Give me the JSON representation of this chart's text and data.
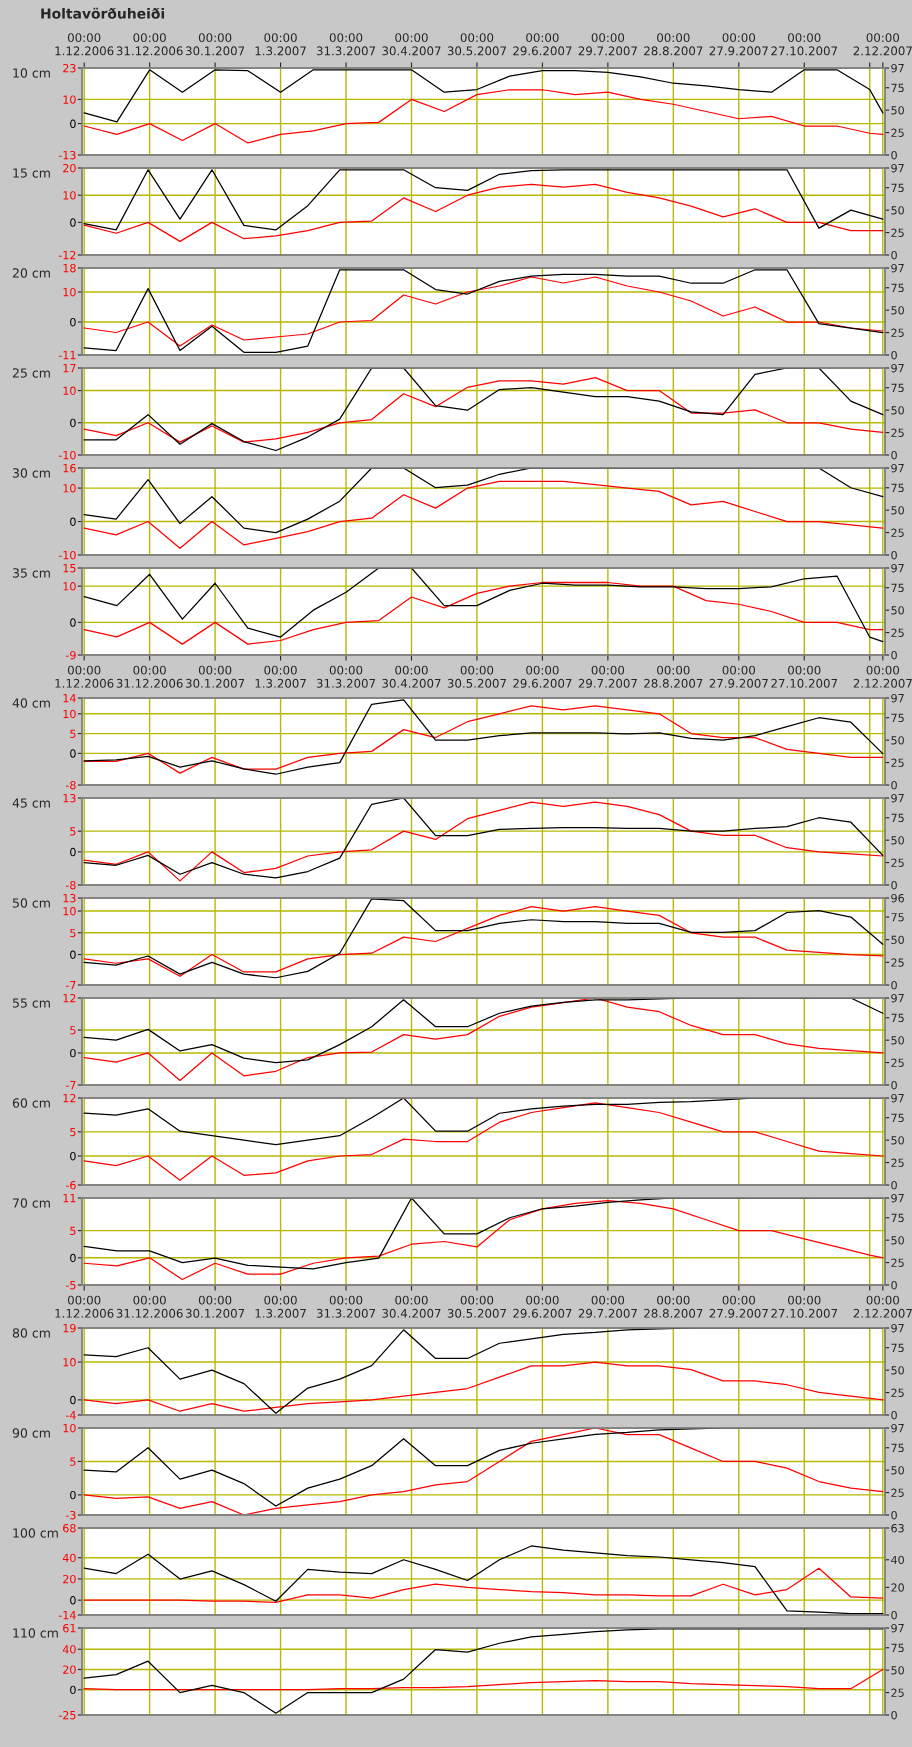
{
  "chart_data": [
    {
      "type": "line",
      "title": "Holtavörðuheiði",
      "ylabel": "10 cm",
      "x": [
        "2006-12-01",
        "2006-12-16",
        "2006-12-31",
        "2007-01-15",
        "2007-01-30",
        "2007-02-14",
        "2007-03-01",
        "2007-03-16",
        "2007-03-31",
        "2007-04-15",
        "2007-04-30",
        "2007-05-15",
        "2007-05-30",
        "2007-06-14",
        "2007-06-29",
        "2007-07-14",
        "2007-07-29",
        "2007-08-13",
        "2007-08-28",
        "2007-09-12",
        "2007-09-27",
        "2007-10-12",
        "2007-10-27",
        "2007-11-11",
        "2007-11-26",
        "2007-12-02"
      ],
      "series": [
        {
          "color": "#ff0000",
          "values": [
            -1,
            -4.5,
            0,
            -7,
            0,
            -8,
            -4.5,
            -3,
            0,
            0.5,
            10,
            5,
            12,
            14,
            14,
            12,
            13,
            10,
            8,
            5,
            2,
            3,
            -1,
            -1,
            -4,
            -4.5
          ]
        },
        {
          "color": "#000000",
          "axis": "y2",
          "values": [
            47,
            37,
            95,
            70,
            95,
            94,
            70,
            95,
            95,
            95,
            95,
            70,
            73,
            88,
            94,
            94,
            92,
            87,
            80,
            77,
            73,
            70,
            95,
            95,
            73,
            47
          ]
        }
      ],
      "xlim": [
        "2006-11-30",
        "2007-12-03"
      ],
      "xticks": [
        {
          "value": "2006-12-01",
          "label": "00:00\n1.12.2006"
        },
        {
          "value": "2006-12-31",
          "label": "00:00\n31.12.2006"
        },
        {
          "value": "2007-01-30",
          "label": "00:00\n30.1.2007"
        },
        {
          "value": "2007-03-01",
          "label": "00:00\n1.3.2007"
        },
        {
          "value": "2007-03-31",
          "label": "00:00\n31.3.2007"
        },
        {
          "value": "2007-04-30",
          "label": "00:00\n30.4.2007"
        },
        {
          "value": "2007-05-30",
          "label": "00:00\n30.5.2007"
        },
        {
          "value": "2007-06-29",
          "label": "00:00\n29.6.2007"
        },
        {
          "value": "2007-07-29",
          "label": "00:00\n29.7.2007"
        },
        {
          "value": "2007-08-28",
          "label": "00:00\n28.8.2007"
        },
        {
          "value": "2007-09-27",
          "label": "00:00\n27.9.2007"
        },
        {
          "value": "2007-10-27",
          "label": "00:00\n27.10.2007"
        },
        {
          "value": "2007-11-26",
          "label": null
        },
        {
          "value": "2007-12-02",
          "label": "00:00\n2.12.2007"
        }
      ],
      "ylim": [
        -13,
        23
      ],
      "yticks": [
        -13,
        0,
        10,
        23
      ],
      "y2lim": [
        0,
        97
      ],
      "y2ticks": [
        0,
        25,
        50,
        75,
        97
      ],
      "grid": true
    },
    {
      "type": "line",
      "ylabel": "15 cm",
      "categories": [
        null,
        null,
        null,
        null,
        null,
        null,
        null,
        null,
        null,
        null,
        null,
        null,
        null,
        null,
        null,
        null,
        null,
        null,
        null,
        null,
        null,
        null,
        null,
        null,
        null,
        null
      ],
      "series": [
        {
          "color": "#ff0000",
          "values": [
            -1,
            -4,
            0,
            -7,
            0,
            -6,
            -5,
            -3,
            0,
            0.5,
            9,
            4,
            10,
            13,
            14,
            13,
            14,
            11,
            9,
            6,
            2,
            5,
            0,
            0,
            -3,
            -3
          ]
        },
        {
          "color": "#000000",
          "axis": "y2",
          "values": [
            35,
            28,
            95,
            40,
            95,
            33,
            28,
            55,
            95,
            95,
            95,
            75,
            72,
            90,
            94,
            95,
            95,
            95,
            95,
            95,
            95,
            95,
            95,
            30,
            50,
            40
          ]
        }
      ],
      "tick_labels": [
        "y",
        "y2"
      ],
      "ylim": [
        -12,
        20
      ],
      "yticks": [
        -12,
        0,
        10,
        20
      ],
      "y2lim": [
        0,
        97
      ],
      "y2ticks": [
        0,
        25,
        50,
        75,
        97
      ],
      "grid": true
    },
    {
      "type": "line",
      "ylabel": "20 cm",
      "categories": [
        null,
        null,
        null,
        null,
        null,
        null,
        null,
        null,
        null,
        null,
        null,
        null,
        null,
        null,
        null,
        null,
        null,
        null,
        null,
        null,
        null,
        null,
        null,
        null,
        null,
        null
      ],
      "series": [
        {
          "color": "#ff0000",
          "values": [
            -2,
            -3.5,
            0,
            -8,
            -1,
            -6,
            -5,
            -4,
            0,
            0.5,
            9,
            6,
            10,
            12,
            15,
            13,
            15,
            12,
            10,
            7,
            2,
            5,
            0,
            0,
            -2,
            -3
          ]
        },
        {
          "color": "#000000",
          "axis": "y2",
          "values": [
            8,
            5,
            74,
            5,
            32,
            3,
            3,
            10,
            95,
            95,
            95,
            73,
            68,
            82,
            88,
            90,
            90,
            88,
            88,
            80,
            80,
            95,
            95,
            35,
            30,
            25
          ]
        }
      ],
      "tick_labels": [
        "y",
        "y2"
      ],
      "ylim": [
        -11,
        18
      ],
      "yticks": [
        -11,
        0,
        10,
        18
      ],
      "y2lim": [
        0,
        97
      ],
      "y2ticks": [
        0,
        25,
        50,
        75,
        97
      ],
      "grid": true
    },
    {
      "type": "line",
      "ylabel": "25 cm",
      "categories": [
        null,
        null,
        null,
        null,
        null,
        null,
        null,
        null,
        null,
        null,
        null,
        null,
        null,
        null,
        null,
        null,
        null,
        null,
        null,
        null,
        null,
        null,
        null,
        null,
        null,
        null
      ],
      "series": [
        {
          "color": "#ff0000",
          "values": [
            -2,
            -4,
            0,
            -6,
            -1,
            -6,
            -5,
            -3,
            0,
            1,
            9,
            5,
            11,
            13,
            13,
            12,
            14,
            10,
            10,
            3,
            3,
            4,
            0,
            0,
            -2,
            -3
          ]
        },
        {
          "color": "#000000",
          "axis": "y2",
          "values": [
            17,
            17,
            45,
            12,
            35,
            15,
            5,
            20,
            40,
            97,
            97,
            55,
            50,
            73,
            75,
            70,
            65,
            65,
            60,
            48,
            45,
            90,
            97,
            97,
            60,
            45
          ]
        }
      ],
      "tick_labels": [
        "y",
        "y2"
      ],
      "ylim": [
        -10,
        17
      ],
      "yticks": [
        -10,
        0,
        10,
        17
      ],
      "y2lim": [
        0,
        97
      ],
      "y2ticks": [
        0,
        25,
        50,
        75,
        97
      ],
      "grid": true
    },
    {
      "type": "line",
      "ylabel": "30 cm",
      "categories": [
        null,
        null,
        null,
        null,
        null,
        null,
        null,
        null,
        null,
        null,
        null,
        null,
        null,
        null,
        null,
        null,
        null,
        null,
        null,
        null,
        null,
        null,
        null,
        null,
        null,
        null
      ],
      "series": [
        {
          "color": "#ff0000",
          "values": [
            -2,
            -4,
            0,
            -8,
            0,
            -7,
            -5,
            -3,
            0,
            1,
            8,
            4,
            10,
            12,
            12,
            12,
            11,
            10,
            9,
            5,
            6,
            3,
            0,
            0,
            -1,
            -2
          ]
        },
        {
          "color": "#000000",
          "axis": "y2",
          "values": [
            45,
            40,
            84,
            35,
            65,
            30,
            25,
            40,
            60,
            97,
            97,
            75,
            78,
            90,
            97,
            97,
            97,
            97,
            97,
            97,
            97,
            97,
            97,
            97,
            75,
            65
          ]
        }
      ],
      "tick_labels": [
        "y",
        "y2"
      ],
      "ylim": [
        -10,
        16
      ],
      "yticks": [
        -10,
        0,
        10,
        16
      ],
      "y2lim": [
        0,
        97
      ],
      "y2ticks": [
        0,
        25,
        50,
        75,
        97
      ],
      "grid": true
    },
    {
      "type": "line",
      "ylabel": "35 cm",
      "x": [
        "2006-12-01",
        "2006-12-16",
        "2006-12-31",
        "2007-01-15",
        "2007-01-30",
        "2007-02-14",
        "2007-03-01",
        "2007-03-16",
        "2007-03-31",
        "2007-04-15",
        "2007-04-30",
        "2007-05-15",
        "2007-05-30",
        "2007-06-14",
        "2007-06-29",
        "2007-07-14",
        "2007-07-29",
        "2007-08-13",
        "2007-08-28",
        "2007-09-12",
        "2007-09-27",
        "2007-10-12",
        "2007-10-27",
        "2007-11-11",
        "2007-11-26",
        "2007-12-02"
      ],
      "series": [
        {
          "color": "#ff0000",
          "values": [
            -2,
            -4,
            0,
            -6,
            0,
            -6,
            -5,
            -2,
            0,
            0.5,
            7,
            4,
            8,
            10,
            11,
            11,
            11,
            10,
            10,
            6,
            5,
            3,
            0,
            0,
            -2,
            -2
          ]
        },
        {
          "color": "#000000",
          "axis": "y2",
          "values": [
            65,
            55,
            90,
            40,
            80,
            30,
            20,
            50,
            70,
            97,
            97,
            55,
            55,
            72,
            80,
            78,
            78,
            76,
            76,
            74,
            74,
            76,
            85,
            88,
            20,
            15
          ]
        }
      ],
      "xlim": [
        "2006-11-30",
        "2007-12-03"
      ],
      "xticks": [
        {
          "value": "2006-12-01",
          "label": "00:00\n1.12.2006"
        },
        {
          "value": "2006-12-31",
          "label": "00:00\n31.12.2006"
        },
        {
          "value": "2007-01-30",
          "label": "00:00\n30.1.2007"
        },
        {
          "value": "2007-03-01",
          "label": "00:00\n1.3.2007"
        },
        {
          "value": "2007-03-31",
          "label": "00:00\n31.3.2007"
        },
        {
          "value": "2007-04-30",
          "label": "00:00\n30.4.2007"
        },
        {
          "value": "2007-05-30",
          "label": "00:00\n30.5.2007"
        },
        {
          "value": "2007-06-29",
          "label": "00:00\n29.6.2007"
        },
        {
          "value": "2007-07-29",
          "label": "00:00\n29.7.2007"
        },
        {
          "value": "2007-08-28",
          "label": "00:00\n28.8.2007"
        },
        {
          "value": "2007-09-27",
          "label": "00:00\n27.9.2007"
        },
        {
          "value": "2007-10-27",
          "label": "00:00\n27.10.2007"
        },
        {
          "value": "2007-11-26",
          "label": null
        },
        {
          "value": "2007-12-02",
          "label": "00:00\n2.12.2007"
        }
      ],
      "ylim": [
        -9,
        15
      ],
      "yticks": [
        -9,
        0,
        10,
        15
      ],
      "y2lim": [
        0,
        97
      ],
      "y2ticks": [
        0,
        25,
        50,
        75,
        97
      ],
      "grid": true
    },
    {
      "type": "line",
      "ylabel": "40 cm",
      "categories": [
        null,
        null,
        null,
        null,
        null,
        null,
        null,
        null,
        null,
        null,
        null,
        null,
        null,
        null,
        null,
        null,
        null,
        null,
        null,
        null,
        null,
        null,
        null,
        null,
        null,
        null
      ],
      "series": [
        {
          "color": "#ff0000",
          "values": [
            -2,
            -2,
            0,
            -5,
            -1,
            -4,
            -4,
            -1,
            0,
            0.5,
            6,
            4,
            8,
            10,
            12,
            11,
            12,
            11,
            10,
            5,
            4,
            4,
            1,
            0,
            -1,
            -1
          ]
        },
        {
          "color": "#000000",
          "axis": "y2",
          "values": [
            27,
            28,
            32,
            20,
            27,
            18,
            12,
            20,
            25,
            90,
            95,
            50,
            50,
            55,
            58,
            58,
            58,
            57,
            58,
            52,
            50,
            55,
            65,
            75,
            70,
            35
          ]
        }
      ],
      "tick_labels": [
        "y",
        "y2"
      ],
      "ylim": [
        -8,
        14
      ],
      "yticks": [
        -8,
        0,
        5,
        10,
        14
      ],
      "y2lim": [
        0,
        97
      ],
      "y2ticks": [
        0,
        25,
        50,
        75,
        97
      ],
      "grid": true
    },
    {
      "type": "line",
      "ylabel": "45 cm",
      "categories": [
        null,
        null,
        null,
        null,
        null,
        null,
        null,
        null,
        null,
        null,
        null,
        null,
        null,
        null,
        null,
        null,
        null,
        null,
        null,
        null,
        null,
        null,
        null,
        null,
        null,
        null
      ],
      "series": [
        {
          "color": "#ff0000",
          "values": [
            -2,
            -3,
            0,
            -7,
            0,
            -5,
            -4,
            -1,
            0,
            0.5,
            5,
            3,
            8,
            10,
            12,
            11,
            12,
            11,
            9,
            5,
            4,
            4,
            1,
            0,
            -0.5,
            -1
          ]
        },
        {
          "color": "#000000",
          "axis": "y2",
          "values": [
            25,
            22,
            33,
            12,
            25,
            12,
            8,
            15,
            30,
            90,
            97,
            55,
            55,
            62,
            63,
            64,
            64,
            63,
            63,
            60,
            60,
            63,
            65,
            75,
            70,
            33
          ]
        }
      ],
      "tick_labels": [
        "y",
        "y2"
      ],
      "ylim": [
        -8,
        13
      ],
      "yticks": [
        -8,
        0,
        5,
        13
      ],
      "y2lim": [
        0,
        97
      ],
      "y2ticks": [
        0,
        25,
        50,
        75,
        97
      ],
      "grid": true
    },
    {
      "type": "line",
      "ylabel": "50 cm",
      "categories": [
        null,
        null,
        null,
        null,
        null,
        null,
        null,
        null,
        null,
        null,
        null,
        null,
        null,
        null,
        null,
        null,
        null,
        null,
        null,
        null,
        null,
        null,
        null,
        null,
        null,
        null
      ],
      "series": [
        {
          "color": "#ff0000",
          "values": [
            -1,
            -2,
            -1,
            -5,
            0,
            -4,
            -4,
            -1,
            0,
            0.3,
            4,
            3,
            6,
            9,
            11,
            10,
            11,
            10,
            9,
            5,
            4,
            4,
            1,
            0.5,
            0,
            -0.3
          ]
        },
        {
          "color": "#000000",
          "axis": "y2",
          "values": [
            25,
            22,
            32,
            12,
            25,
            12,
            8,
            15,
            35,
            95,
            93,
            60,
            60,
            68,
            72,
            70,
            70,
            68,
            68,
            58,
            58,
            60,
            80,
            82,
            75,
            45
          ]
        }
      ],
      "tick_labels": [
        "y",
        "y2"
      ],
      "ylim": [
        -7,
        13
      ],
      "yticks": [
        -7,
        0,
        5,
        10,
        13
      ],
      "y2lim": [
        0,
        96
      ],
      "y2ticks": [
        0,
        25,
        50,
        75,
        96
      ],
      "grid": true
    },
    {
      "type": "line",
      "ylabel": "55 cm",
      "categories": [
        null,
        null,
        null,
        null,
        null,
        null,
        null,
        null,
        null,
        null,
        null,
        null,
        null,
        null,
        null,
        null,
        null,
        null,
        null,
        null,
        null,
        null,
        null,
        null,
        null,
        null
      ],
      "series": [
        {
          "color": "#ff0000",
          "values": [
            -1,
            -2,
            0,
            -6,
            0,
            -5,
            -4,
            -1,
            0,
            0.2,
            4,
            3,
            4,
            8,
            10,
            11,
            12,
            10,
            9,
            6,
            4,
            4,
            2,
            1,
            0.5,
            0
          ]
        },
        {
          "color": "#000000",
          "axis": "y2",
          "values": [
            53,
            50,
            62,
            38,
            45,
            30,
            25,
            28,
            45,
            65,
            95,
            65,
            65,
            80,
            88,
            92,
            95,
            95,
            96,
            97,
            97,
            97,
            97,
            97,
            97,
            80
          ]
        }
      ],
      "tick_labels": [
        "y",
        "y2"
      ],
      "ylim": [
        -7,
        12
      ],
      "yticks": [
        -7,
        0,
        5,
        12
      ],
      "y2lim": [
        0,
        97
      ],
      "y2ticks": [
        0,
        25,
        50,
        75,
        97
      ],
      "grid": true
    },
    {
      "type": "line",
      "ylabel": "60 cm",
      "categories": [
        null,
        null,
        null,
        null,
        null,
        null,
        null,
        null,
        null,
        null,
        null,
        null,
        null,
        null,
        null,
        null,
        null,
        null,
        null,
        null,
        null,
        null,
        null,
        null,
        null,
        null
      ],
      "series": [
        {
          "color": "#ff0000",
          "values": [
            -1,
            -2,
            0,
            -5,
            0,
            -4,
            -3.5,
            -1,
            0,
            0.3,
            3.5,
            3,
            3,
            7,
            9,
            10,
            11,
            10,
            9,
            7,
            5,
            5,
            3,
            1,
            0.5,
            0
          ]
        },
        {
          "color": "#000000",
          "axis": "y2",
          "values": [
            80,
            78,
            85,
            60,
            55,
            50,
            45,
            50,
            55,
            75,
            97,
            60,
            60,
            80,
            85,
            88,
            90,
            90,
            92,
            93,
            95,
            97,
            97,
            97,
            97,
            97
          ]
        }
      ],
      "tick_labels": [
        "y",
        "y2"
      ],
      "ylim": [
        -6,
        12
      ],
      "yticks": [
        -6,
        0,
        5,
        12
      ],
      "y2lim": [
        0,
        97
      ],
      "y2ticks": [
        0,
        25,
        50,
        75,
        97
      ],
      "grid": true
    },
    {
      "type": "line",
      "ylabel": "70 cm",
      "x": [
        "2006-12-01",
        "2006-12-16",
        "2006-12-31",
        "2007-01-15",
        "2007-01-30",
        "2007-02-14",
        "2007-03-01",
        "2007-03-16",
        "2007-03-31",
        "2007-04-15",
        "2007-04-30",
        "2007-05-15",
        "2007-05-30",
        "2007-06-14",
        "2007-06-29",
        "2007-07-14",
        "2007-07-29",
        "2007-08-13",
        "2007-08-28",
        "2007-09-12",
        "2007-09-27",
        "2007-10-12",
        "2007-10-27",
        "2007-11-11",
        "2007-11-26",
        "2007-12-02"
      ],
      "series": [
        {
          "color": "#ff0000",
          "values": [
            -1,
            -1.5,
            0,
            -4,
            -1,
            -3,
            -3,
            -1,
            0,
            0.3,
            2.5,
            3,
            2,
            7,
            9,
            10,
            10.5,
            10,
            9,
            7,
            5,
            5,
            3.5,
            2,
            0.5,
            0
          ]
        },
        {
          "color": "#000000",
          "axis": "y2",
          "values": [
            43,
            38,
            38,
            25,
            30,
            22,
            20,
            18,
            25,
            30,
            97,
            57,
            57,
            75,
            85,
            88,
            92,
            95,
            97,
            97,
            97,
            97,
            97,
            97,
            97,
            97
          ]
        }
      ],
      "xlim": [
        "2006-11-30",
        "2007-12-03"
      ],
      "xticks": [
        {
          "value": "2006-12-01",
          "label": "00:00\n1.12.2006"
        },
        {
          "value": "2006-12-31",
          "label": "00:00\n31.12.2006"
        },
        {
          "value": "2007-01-30",
          "label": "00:00\n30.1.2007"
        },
        {
          "value": "2007-03-01",
          "label": "00:00\n1.3.2007"
        },
        {
          "value": "2007-03-31",
          "label": "00:00\n31.3.2007"
        },
        {
          "value": "2007-04-30",
          "label": "00:00\n30.4.2007"
        },
        {
          "value": "2007-05-30",
          "label": "00:00\n30.5.2007"
        },
        {
          "value": "2007-06-29",
          "label": "00:00\n29.6.2007"
        },
        {
          "value": "2007-07-29",
          "label": "00:00\n29.7.2007"
        },
        {
          "value": "2007-08-28",
          "label": "00:00\n28.8.2007"
        },
        {
          "value": "2007-09-27",
          "label": "00:00\n27.9.2007"
        },
        {
          "value": "2007-10-27",
          "label": "00:00\n27.10.2007"
        },
        {
          "value": "2007-11-26",
          "label": null
        },
        {
          "value": "2007-12-02",
          "label": "00:00\n2.12.2007"
        }
      ],
      "ylim": [
        -5,
        11
      ],
      "yticks": [
        -5,
        0,
        5,
        11
      ],
      "y2lim": [
        0,
        97
      ],
      "y2ticks": [
        0,
        25,
        50,
        75,
        97
      ],
      "grid": true
    },
    {
      "type": "line",
      "ylabel": "80 cm",
      "categories": [
        null,
        null,
        null,
        null,
        null,
        null,
        null,
        null,
        null,
        null,
        null,
        null,
        null,
        null,
        null,
        null,
        null,
        null,
        null,
        null,
        null,
        null,
        null,
        null,
        null,
        null
      ],
      "series": [
        {
          "color": "#ff0000",
          "values": [
            0,
            -1,
            0,
            -3,
            -1,
            -3,
            -2,
            -1,
            -0.5,
            0,
            1,
            2,
            3,
            6,
            9,
            9,
            10,
            9,
            9,
            8,
            5,
            5,
            4,
            2,
            1,
            0
          ]
        },
        {
          "color": "#000000",
          "axis": "y2",
          "values": [
            67,
            65,
            75,
            40,
            50,
            35,
            2,
            30,
            40,
            55,
            95,
            63,
            63,
            80,
            85,
            90,
            92,
            95,
            96,
            97,
            97,
            97,
            97,
            97,
            97,
            97
          ]
        }
      ],
      "tick_labels": [
        "y",
        "y2"
      ],
      "ylim": [
        -4,
        19
      ],
      "yticks": [
        -4,
        0,
        10,
        19
      ],
      "y2lim": [
        0,
        97
      ],
      "y2ticks": [
        0,
        25,
        50,
        75,
        97
      ],
      "grid": true
    },
    {
      "type": "line",
      "ylabel": "90 cm",
      "categories": [
        null,
        null,
        null,
        null,
        null,
        null,
        null,
        null,
        null,
        null,
        null,
        null,
        null,
        null,
        null,
        null,
        null,
        null,
        null,
        null,
        null,
        null,
        null,
        null,
        null,
        null
      ],
      "series": [
        {
          "color": "#ff0000",
          "values": [
            0,
            -0.5,
            -0.3,
            -2,
            -1,
            -3,
            -2,
            -1.5,
            -1,
            0,
            0.5,
            1.5,
            2,
            5,
            8,
            9,
            10,
            9,
            9,
            7,
            5,
            5,
            4,
            2,
            1,
            0.5
          ]
        },
        {
          "color": "#000000",
          "axis": "y2",
          "values": [
            50,
            48,
            75,
            40,
            50,
            35,
            10,
            30,
            40,
            55,
            85,
            55,
            55,
            72,
            80,
            85,
            90,
            92,
            95,
            96,
            97,
            97,
            97,
            97,
            97,
            97
          ]
        }
      ],
      "tick_labels": [
        "y",
        "y2"
      ],
      "ylim": [
        -3,
        10
      ],
      "yticks": [
        -3,
        0,
        5,
        10
      ],
      "y2lim": [
        0,
        97
      ],
      "y2ticks": [
        0,
        25,
        50,
        75,
        97
      ],
      "grid": true
    },
    {
      "type": "line",
      "ylabel": "100 cm",
      "categories": [
        null,
        null,
        null,
        null,
        null,
        null,
        null,
        null,
        null,
        null,
        null,
        null,
        null,
        null,
        null,
        null,
        null,
        null,
        null,
        null,
        null,
        null,
        null,
        null,
        null,
        null
      ],
      "series": [
        {
          "color": "#ff0000",
          "values": [
            0,
            0,
            0,
            0,
            -1,
            -1,
            -2,
            5,
            5,
            2,
            10,
            15,
            12,
            10,
            8,
            7,
            5,
            5,
            4,
            4,
            15,
            5,
            10,
            30,
            3,
            2
          ]
        },
        {
          "color": "#000000",
          "axis": "y2",
          "values": [
            34,
            30,
            44,
            26,
            32,
            22,
            10,
            33,
            31,
            30,
            40,
            33,
            25,
            40,
            50,
            47,
            45,
            43,
            42,
            40,
            38,
            35,
            3,
            2,
            1,
            1
          ]
        }
      ],
      "tick_labels": [
        "y",
        "y2"
      ],
      "ylim": [
        -14,
        68
      ],
      "yticks": [
        -14,
        0,
        20,
        40,
        68
      ],
      "y2lim": [
        0,
        63
      ],
      "y2ticks": [
        0,
        20,
        40,
        63
      ],
      "grid": true
    },
    {
      "type": "line",
      "ylabel": "110 cm",
      "categories": [
        null,
        null,
        null,
        null,
        null,
        null,
        null,
        null,
        null,
        null,
        null,
        null,
        null,
        null,
        null,
        null,
        null,
        null,
        null,
        null,
        null,
        null,
        null,
        null,
        null,
        null
      ],
      "series": [
        {
          "color": "#ff0000",
          "values": [
            1,
            0,
            0,
            0,
            0,
            0,
            0,
            0,
            1,
            1,
            2,
            2,
            3,
            5,
            7,
            8,
            9,
            8,
            8,
            6,
            5,
            4,
            3,
            1,
            1,
            20
          ]
        },
        {
          "color": "#000000",
          "axis": "y2",
          "values": [
            41,
            45,
            60,
            25,
            33,
            25,
            2,
            25,
            25,
            25,
            40,
            73,
            70,
            80,
            87,
            90,
            93,
            95,
            96,
            96,
            96,
            96,
            96,
            96,
            96,
            96
          ]
        }
      ],
      "tick_labels": [
        "y",
        "y2"
      ],
      "ylim": [
        -25,
        61
      ],
      "yticks": [
        -25,
        0,
        20,
        40,
        61
      ],
      "y2lim": [
        0,
        97
      ],
      "y2ticks": [
        0,
        25,
        50,
        75,
        97
      ],
      "grid": true
    }
  ]
}
